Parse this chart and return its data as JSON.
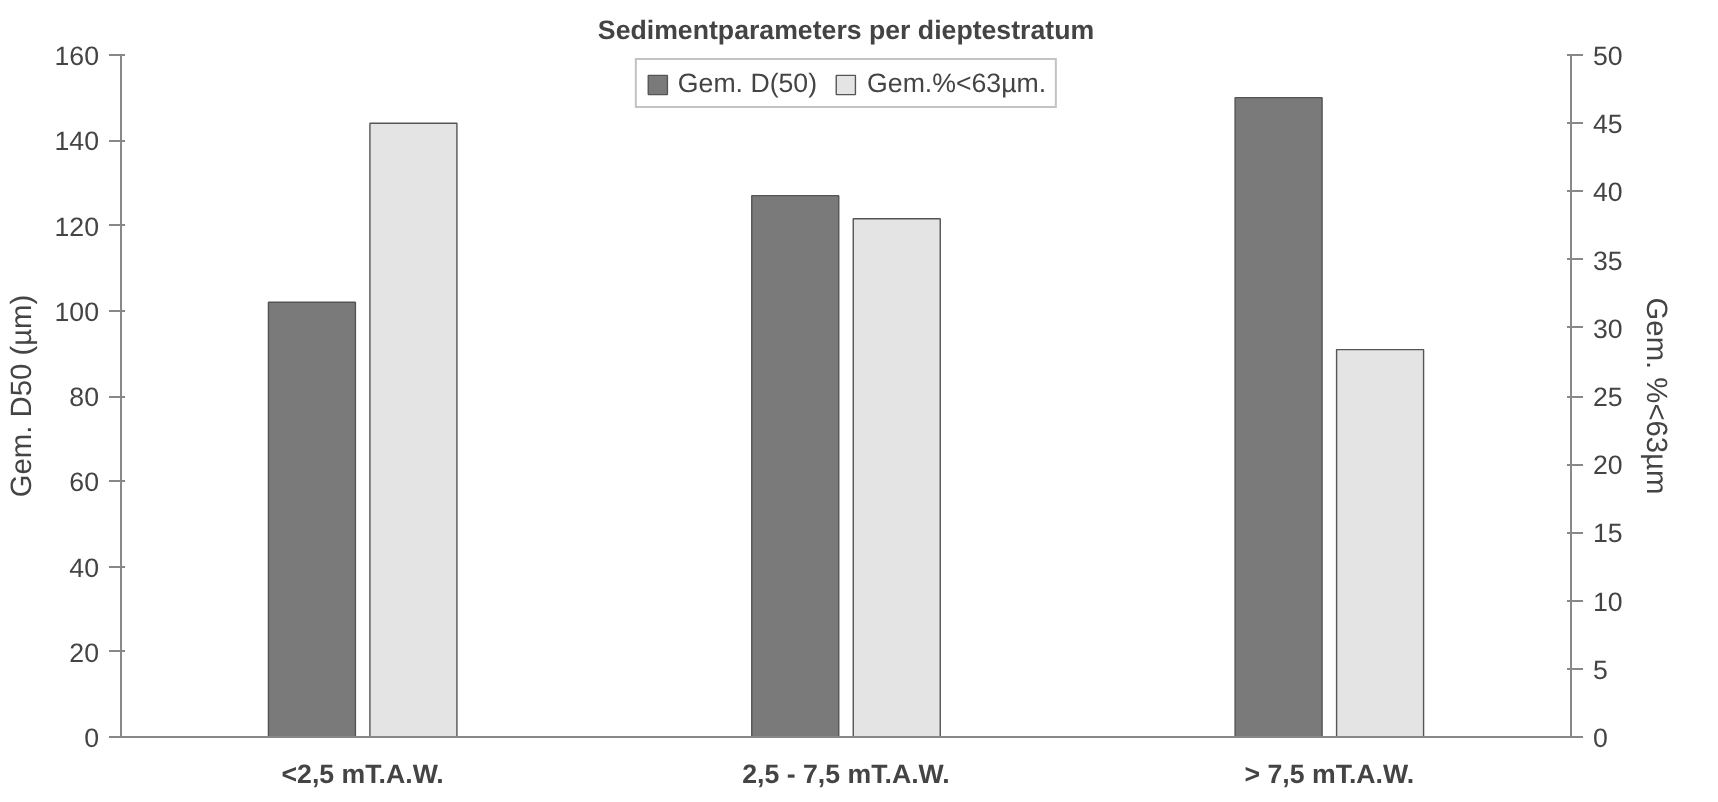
{
  "chart_data": {
    "type": "bar",
    "title": "Sedimentparameters per dieptestratum",
    "categories": [
      "<2,5 mT.A.W.",
      "2,5 - 7,5 mT.A.W.",
      "> 7,5 mT.A.W."
    ],
    "series": [
      {
        "name": "Gem. D(50)",
        "color": "#7a7a7a",
        "values": [
          102,
          127,
          150
        ]
      },
      {
        "name": "Gem.%<63µm.",
        "color": "#e4e4e4",
        "values": [
          45,
          38,
          28.4
        ],
        "axis": "y2"
      }
    ],
    "ylabel": "Gem. D50 (µm)",
    "y2label": "Gem. %<63µm",
    "ylim": [
      0,
      160
    ],
    "yticks": [
      0,
      20,
      40,
      60,
      80,
      100,
      120,
      140,
      160
    ],
    "y2lim": [
      0,
      50
    ],
    "y2ticks": [
      0,
      5,
      10,
      15,
      20,
      25,
      30,
      35,
      40,
      45,
      50
    ],
    "grid": false,
    "legend": "top"
  }
}
